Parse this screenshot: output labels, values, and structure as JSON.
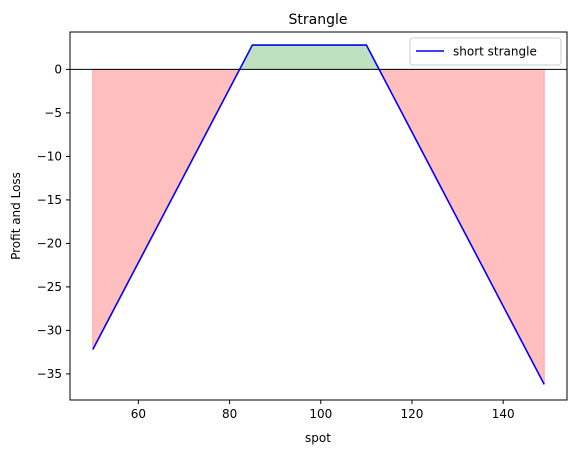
{
  "chart_data": {
    "type": "line",
    "title": "Strangle",
    "xlabel": "spot",
    "ylabel": "Profit and Loss",
    "xlim": [
      45,
      154
    ],
    "ylim": [
      -38,
      4.3
    ],
    "x_ticks": [
      60,
      80,
      100,
      120,
      140
    ],
    "y_ticks": [
      0,
      -5,
      -10,
      -15,
      -20,
      -25,
      -30,
      -35
    ],
    "x_tick_labels": [
      "60",
      "80",
      "100",
      "120",
      "140"
    ],
    "y_tick_labels": [
      "0",
      "−5",
      "−10",
      "−15",
      "−20",
      "−25",
      "−30",
      "−35"
    ],
    "grid": false,
    "legend_position": "top-right",
    "zero_line": true,
    "series": [
      {
        "name": "short strangle",
        "color": "#0000ff",
        "x": [
          50,
          85,
          110,
          149
        ],
        "y": [
          -32.2,
          2.8,
          2.8,
          -36.2
        ]
      }
    ],
    "fill_colors": {
      "profit": "#bfe1bf",
      "loss": "#ffbfbf",
      "loss_edge": "#ffa0a0"
    }
  }
}
